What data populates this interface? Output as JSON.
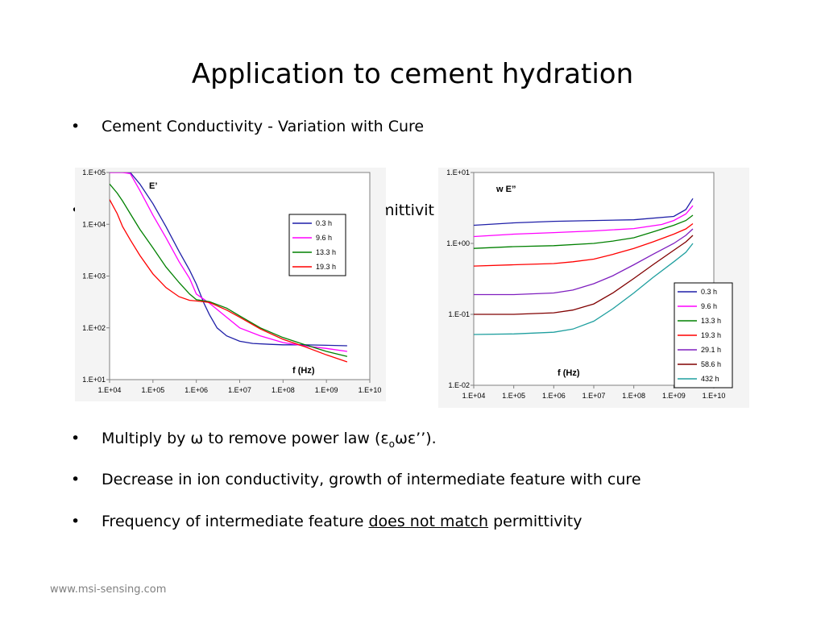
{
  "slide": {
    "title": "Application to cement hydration",
    "bullets": [
      {
        "marker": "•",
        "text": "Cement Conductivity - Variation with Cure"
      },
      {
        "marker": "•",
        "text_before": "Multiply by ",
        "omega": "ω",
        "text_after": " to remove power law (",
        "eps": "ε",
        "eps_sub": "o",
        "omega2": "ωε’’).",
        "full": "Multiply by ω to remove power law (εoωε’’)."
      },
      {
        "marker": "•",
        "text": "Decrease in ion conductivity, growth of intermediate feature with cure"
      },
      {
        "marker": "•",
        "text_before": "Frequency of intermediate feature ",
        "underlined": "does not match",
        "text_after": " permittivity"
      }
    ],
    "partial_bullet": {
      "marker": "•",
      "visible_text": "mittivit"
    },
    "footer": "www.msi-sensing.com"
  },
  "chart_data": [
    {
      "type": "line",
      "title": "E’",
      "xlabel": "f (Hz)",
      "ylabel": "",
      "x_scale": "log",
      "y_scale": "log",
      "xlim": [
        10000,
        10000000000
      ],
      "ylim": [
        10,
        100000
      ],
      "x_ticks": [
        "1.E+04",
        "1.E+05",
        "1.E+06",
        "1.E+07",
        "1.E+08",
        "1.E+09",
        "1.E+10"
      ],
      "y_ticks": [
        "1.E+01",
        "1.E+02",
        "1.E+03",
        "1.E+04",
        "1.E+05"
      ],
      "legend_position": "right",
      "grid": false,
      "series": [
        {
          "name": "0.3 h",
          "color": "#1f1fa8",
          "x": [
            10000,
            20000,
            30000,
            50000,
            100000,
            200000,
            400000,
            700000,
            1000000,
            1500000,
            2000000,
            3000000,
            5000000,
            10000000,
            20000000,
            50000000,
            100000000,
            300000000,
            1000000000,
            3000000000
          ],
          "y": [
            100000,
            100000,
            100000,
            60000,
            25000,
            9000,
            3000,
            1300,
            700,
            300,
            180,
            100,
            70,
            55,
            50,
            48,
            47,
            47,
            46,
            45
          ]
        },
        {
          "name": "9.6 h",
          "color": "#ff00ff",
          "x": [
            10000,
            20000,
            30000,
            50000,
            100000,
            200000,
            400000,
            700000,
            1000000,
            2000000,
            5000000,
            10000000,
            30000000,
            100000000,
            300000000,
            1000000000,
            3000000000
          ],
          "y": [
            100000,
            100000,
            95000,
            45000,
            15000,
            5500,
            1900,
            900,
            450,
            300,
            160,
            100,
            70,
            52,
            45,
            40,
            35
          ]
        },
        {
          "name": "13.3 h",
          "color": "#008000",
          "x": [
            10000,
            15000,
            20000,
            30000,
            50000,
            100000,
            200000,
            400000,
            700000,
            1000000,
            2000000,
            5000000,
            10000000,
            30000000,
            100000000,
            300000000,
            1000000000,
            3000000000
          ],
          "y": [
            60000,
            40000,
            28000,
            16000,
            8000,
            3500,
            1500,
            750,
            450,
            350,
            320,
            240,
            170,
            100,
            65,
            48,
            35,
            28
          ]
        },
        {
          "name": "19.3 h",
          "color": "#ff0000",
          "x": [
            10000,
            15000,
            20000,
            30000,
            50000,
            100000,
            200000,
            400000,
            700000,
            1000000,
            2000000,
            5000000,
            10000000,
            30000000,
            100000000,
            300000000,
            1000000000,
            3000000000
          ],
          "y": [
            30000,
            16000,
            9000,
            5000,
            2500,
            1100,
            600,
            400,
            340,
            330,
            310,
            220,
            160,
            95,
            60,
            44,
            30,
            22
          ]
        }
      ]
    },
    {
      "type": "line",
      "title": "w E”",
      "xlabel": "f (Hz)",
      "ylabel": "",
      "x_scale": "log",
      "y_scale": "log",
      "xlim": [
        10000,
        10000000000
      ],
      "ylim": [
        0.01,
        10
      ],
      "x_ticks": [
        "1.E+04",
        "1.E+05",
        "1.E+06",
        "1.E+07",
        "1.E+08",
        "1.E+09",
        "1.E+10"
      ],
      "y_ticks": [
        "1.E-02",
        "1.E-01",
        "1.E+00",
        "1.E+01"
      ],
      "legend_position": "bottom-right",
      "grid": false,
      "series": [
        {
          "name": "0.3 h",
          "color": "#1f1fa8",
          "x": [
            10000,
            100000,
            1000000,
            10000000,
            100000000,
            1000000000,
            2000000000,
            3000000000
          ],
          "y": [
            1.8,
            1.95,
            2.05,
            2.1,
            2.15,
            2.4,
            3.0,
            4.3
          ]
        },
        {
          "name": "9.6 h",
          "color": "#ff00ff",
          "x": [
            10000,
            100000,
            1000000,
            10000000,
            100000000,
            500000000,
            1000000000,
            2000000000,
            3000000000
          ],
          "y": [
            1.25,
            1.35,
            1.42,
            1.5,
            1.62,
            1.85,
            2.1,
            2.6,
            3.4
          ]
        },
        {
          "name": "13.3 h",
          "color": "#008000",
          "x": [
            10000,
            100000,
            1000000,
            10000000,
            30000000,
            100000000,
            300000000,
            1000000000,
            2000000000,
            3000000000
          ],
          "y": [
            0.85,
            0.9,
            0.93,
            1.0,
            1.08,
            1.2,
            1.45,
            1.8,
            2.1,
            2.5
          ]
        },
        {
          "name": "19.3 h",
          "color": "#ff0000",
          "x": [
            10000,
            100000,
            1000000,
            3000000,
            10000000,
            30000000,
            100000000,
            300000000,
            1000000000,
            2000000000,
            3000000000
          ],
          "y": [
            0.48,
            0.5,
            0.52,
            0.55,
            0.6,
            0.7,
            0.85,
            1.05,
            1.35,
            1.6,
            1.9
          ]
        },
        {
          "name": "29.1 h",
          "color": "#7f1fbf",
          "x": [
            10000,
            100000,
            1000000,
            3000000,
            10000000,
            30000000,
            100000000,
            300000000,
            1000000000,
            2000000000,
            3000000000
          ],
          "y": [
            0.19,
            0.19,
            0.2,
            0.22,
            0.27,
            0.35,
            0.5,
            0.7,
            1.0,
            1.3,
            1.6
          ]
        },
        {
          "name": "58.6 h",
          "color": "#800000",
          "x": [
            10000,
            100000,
            1000000,
            3000000,
            10000000,
            30000000,
            100000000,
            300000000,
            1000000000,
            2000000000,
            3000000000
          ],
          "y": [
            0.1,
            0.1,
            0.105,
            0.115,
            0.14,
            0.2,
            0.32,
            0.5,
            0.8,
            1.05,
            1.3
          ]
        },
        {
          "name": "432 h",
          "color": "#1f9f9f",
          "x": [
            10000,
            100000,
            1000000,
            3000000,
            10000000,
            30000000,
            100000000,
            300000000,
            1000000000,
            2000000000,
            3000000000
          ],
          "y": [
            0.052,
            0.053,
            0.056,
            0.062,
            0.08,
            0.12,
            0.2,
            0.33,
            0.55,
            0.75,
            1.0
          ]
        }
      ]
    }
  ]
}
